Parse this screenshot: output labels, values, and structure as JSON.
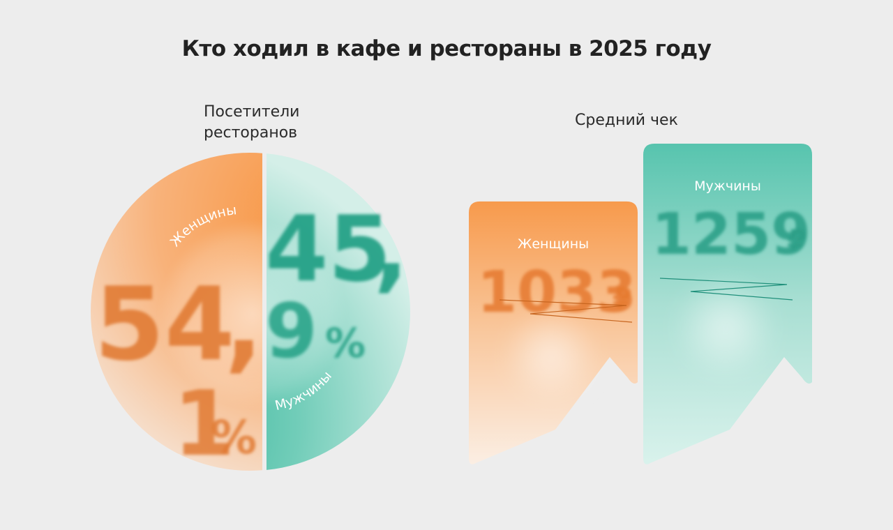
{
  "title": "Кто ходил в кафе и рестораны в 2025 году",
  "colors": {
    "women": "#f39a4e",
    "women_text": "#e07a32",
    "men": "#54c1ab",
    "men_text": "#199c80",
    "background": "#ededed"
  },
  "chart_data": [
    {
      "type": "pie",
      "title": "Посетители ресторанов",
      "slices": [
        {
          "label": "Женщины",
          "value": 54.1,
          "display": [
            "54",
            ",",
            "1",
            "%"
          ]
        },
        {
          "label": "Мужчины",
          "value": 45.9,
          "display": [
            "45",
            ",",
            "9",
            "%"
          ]
        }
      ]
    },
    {
      "type": "bar",
      "title": "Средний чек",
      "categories": [
        "Женщины",
        "Мужчины"
      ],
      "values": [
        1033,
        1259
      ],
      "unit": "₽"
    }
  ]
}
